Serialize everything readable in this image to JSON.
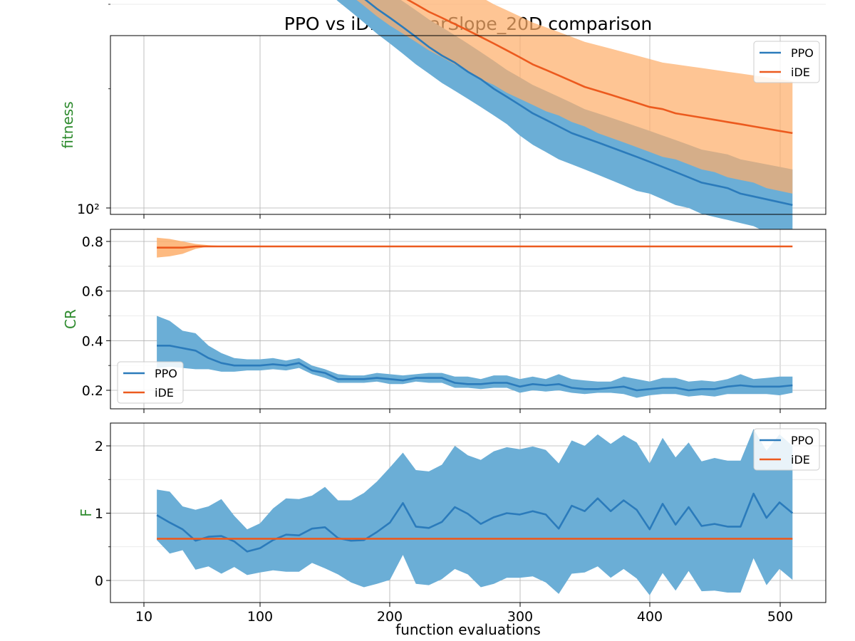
{
  "chart_data": [
    {
      "type": "line",
      "title": "PPO vs iDE: LinearSlope_20D comparison",
      "xlabel": "",
      "ylabel": "fitness",
      "yscale": "log",
      "grid": true,
      "legend_placement": "upper right",
      "xticks": [
        "10",
        "100",
        "200",
        "300",
        "400",
        "500"
      ],
      "ytick_labels": [
        "10²"
      ],
      "colors": {
        "PPO": "#2b7bbb",
        "iDE": "#ec5a1e",
        "PPO_band": "#6baed6",
        "iDE_band": "#fdae6b",
        "ylabel": "#2e8b2e"
      },
      "x": [
        10,
        20,
        30,
        40,
        50,
        60,
        70,
        80,
        90,
        100,
        110,
        120,
        130,
        140,
        150,
        160,
        170,
        180,
        190,
        200,
        210,
        220,
        230,
        240,
        250,
        260,
        270,
        280,
        290,
        300,
        310,
        320,
        330,
        340,
        350,
        360,
        370,
        380,
        390,
        400,
        410,
        420,
        430,
        440,
        450,
        460,
        470,
        480,
        490,
        500,
        510
      ],
      "series": [
        {
          "name": "PPO",
          "values": [
            530,
            495,
            465,
            430,
            405,
            380,
            350,
            330,
            305,
            285,
            268,
            255,
            245,
            236,
            228,
            220,
            212,
            204,
            197,
            191,
            185,
            179,
            173,
            168,
            164,
            159,
            155,
            150,
            146,
            142,
            138,
            135,
            132,
            129,
            127,
            125,
            123,
            121,
            119,
            117,
            115,
            113,
            111,
            109,
            108,
            107,
            105,
            104,
            103,
            102,
            101
          ],
          "lower": [
            480,
            455,
            430,
            405,
            382,
            358,
            330,
            308,
            285,
            265,
            248,
            236,
            227,
            219,
            211,
            202,
            195,
            188,
            181,
            175,
            169,
            163,
            158,
            153,
            149,
            145,
            141,
            137,
            133,
            128,
            124,
            121,
            118,
            116,
            114,
            112,
            110,
            108,
            106,
            105,
            103,
            101,
            100,
            98,
            97,
            96,
            95,
            94,
            92,
            90,
            89
          ],
          "upper": [
            590,
            545,
            505,
            470,
            445,
            415,
            385,
            355,
            330,
            308,
            290,
            276,
            266,
            256,
            247,
            238,
            230,
            222,
            215,
            208,
            202,
            196,
            190,
            185,
            180,
            175,
            170,
            165,
            160,
            156,
            152,
            149,
            146,
            143,
            140,
            138,
            136,
            134,
            132,
            130,
            128,
            126,
            124,
            122,
            121,
            120,
            118,
            117,
            116,
            115,
            114
          ]
        },
        {
          "name": "iDE",
          "values": [
            520,
            470,
            420,
            395,
            370,
            348,
            330,
            313,
            302,
            290,
            280,
            268,
            258,
            250,
            242,
            235,
            228,
            221,
            215,
            210,
            205,
            200,
            195,
            191,
            187,
            183,
            179,
            175,
            171,
            167,
            163,
            160,
            157,
            154,
            151,
            149,
            147,
            145,
            143,
            141,
            140,
            138,
            137,
            136,
            135,
            134,
            133,
            132,
            131,
            130,
            129
          ],
          "lower": [
            455,
            410,
            370,
            345,
            325,
            306,
            290,
            280,
            275,
            268,
            260,
            250,
            240,
            231,
            222,
            214,
            206,
            199,
            192,
            186,
            181,
            176,
            171,
            167,
            163,
            159,
            155,
            152,
            148,
            145,
            142,
            139,
            137,
            134,
            132,
            129,
            127,
            125,
            123,
            121,
            119,
            118,
            116,
            114,
            113,
            111,
            110,
            109,
            107,
            106,
            105
          ],
          "upper": [
            600,
            545,
            490,
            450,
            420,
            395,
            375,
            355,
            340,
            325,
            315,
            305,
            296,
            288,
            280,
            272,
            264,
            257,
            250,
            243,
            237,
            231,
            225,
            220,
            215,
            210,
            205,
            200,
            196,
            192,
            188,
            185,
            182,
            179,
            176,
            174,
            172,
            170,
            168,
            166,
            164,
            163,
            162,
            161,
            160,
            159,
            158,
            157,
            156,
            155,
            154
          ]
        }
      ]
    },
    {
      "type": "line",
      "title": "",
      "xlabel": "",
      "ylabel": "CR",
      "ylim": [
        0.13,
        0.85
      ],
      "grid": true,
      "legend_placement": "lower left",
      "xticks": [
        "10",
        "100",
        "200",
        "300",
        "400",
        "500"
      ],
      "yticks": [
        "0.2",
        "0.4",
        "0.6",
        "0.8"
      ],
      "x": [
        20,
        30,
        40,
        50,
        60,
        70,
        80,
        90,
        100,
        110,
        120,
        130,
        140,
        150,
        160,
        170,
        180,
        190,
        200,
        210,
        220,
        230,
        240,
        250,
        260,
        270,
        280,
        290,
        300,
        310,
        320,
        330,
        340,
        350,
        360,
        370,
        380,
        390,
        400,
        410,
        420,
        430,
        440,
        450,
        460,
        470,
        480,
        490,
        500,
        510
      ],
      "series": [
        {
          "name": "PPO",
          "values": [
            0.38,
            0.38,
            0.37,
            0.36,
            0.33,
            0.31,
            0.3,
            0.3,
            0.3,
            0.305,
            0.3,
            0.31,
            0.28,
            0.27,
            0.245,
            0.245,
            0.245,
            0.25,
            0.245,
            0.24,
            0.25,
            0.25,
            0.25,
            0.23,
            0.225,
            0.225,
            0.23,
            0.23,
            0.215,
            0.225,
            0.22,
            0.225,
            0.21,
            0.205,
            0.205,
            0.21,
            0.215,
            0.2,
            0.205,
            0.21,
            0.21,
            0.2,
            0.205,
            0.205,
            0.215,
            0.22,
            0.215,
            0.215,
            0.215,
            0.22
          ],
          "lower": [
            0.29,
            0.295,
            0.29,
            0.285,
            0.285,
            0.275,
            0.275,
            0.28,
            0.28,
            0.285,
            0.28,
            0.29,
            0.265,
            0.25,
            0.23,
            0.23,
            0.23,
            0.235,
            0.225,
            0.225,
            0.235,
            0.23,
            0.23,
            0.21,
            0.21,
            0.205,
            0.21,
            0.21,
            0.19,
            0.2,
            0.195,
            0.2,
            0.19,
            0.185,
            0.19,
            0.19,
            0.185,
            0.17,
            0.18,
            0.185,
            0.185,
            0.175,
            0.18,
            0.175,
            0.185,
            0.185,
            0.185,
            0.185,
            0.18,
            0.19
          ],
          "upper": [
            0.5,
            0.48,
            0.44,
            0.43,
            0.38,
            0.35,
            0.33,
            0.325,
            0.325,
            0.33,
            0.32,
            0.33,
            0.3,
            0.285,
            0.265,
            0.26,
            0.26,
            0.27,
            0.265,
            0.26,
            0.265,
            0.27,
            0.27,
            0.255,
            0.255,
            0.245,
            0.26,
            0.26,
            0.245,
            0.255,
            0.245,
            0.265,
            0.245,
            0.24,
            0.235,
            0.235,
            0.255,
            0.245,
            0.235,
            0.25,
            0.25,
            0.235,
            0.24,
            0.235,
            0.245,
            0.265,
            0.245,
            0.25,
            0.255,
            0.255
          ]
        },
        {
          "name": "iDE",
          "values": [
            0.775,
            0.775,
            0.775,
            0.78,
            0.78,
            0.78,
            0.78,
            0.78,
            0.78,
            0.78,
            0.78,
            0.78,
            0.78,
            0.78,
            0.78,
            0.78,
            0.78,
            0.78,
            0.78,
            0.78,
            0.78,
            0.78,
            0.78,
            0.78,
            0.78,
            0.78,
            0.78,
            0.78,
            0.78,
            0.78,
            0.78,
            0.78,
            0.78,
            0.78,
            0.78,
            0.78,
            0.78,
            0.78,
            0.78,
            0.78,
            0.78,
            0.78,
            0.78,
            0.78,
            0.78,
            0.78,
            0.78,
            0.78,
            0.78,
            0.78
          ],
          "lower": [
            0.735,
            0.74,
            0.75,
            0.77,
            0.78,
            0.778,
            0.779,
            0.778,
            0.78,
            0.78,
            0.78,
            0.78,
            0.78,
            0.78,
            0.78,
            0.78,
            0.78,
            0.78,
            0.78,
            0.78,
            0.78,
            0.78,
            0.78,
            0.78,
            0.78,
            0.78,
            0.78,
            0.78,
            0.78,
            0.78,
            0.78,
            0.78,
            0.78,
            0.78,
            0.78,
            0.78,
            0.78,
            0.78,
            0.78,
            0.78,
            0.78,
            0.78,
            0.78,
            0.78,
            0.78,
            0.78,
            0.78,
            0.78,
            0.78,
            0.78
          ],
          "upper": [
            0.815,
            0.81,
            0.8,
            0.79,
            0.785,
            0.782,
            0.781,
            0.78,
            0.78,
            0.78,
            0.78,
            0.78,
            0.78,
            0.78,
            0.78,
            0.78,
            0.78,
            0.78,
            0.78,
            0.78,
            0.78,
            0.78,
            0.78,
            0.78,
            0.78,
            0.78,
            0.78,
            0.78,
            0.78,
            0.78,
            0.78,
            0.78,
            0.78,
            0.78,
            0.78,
            0.78,
            0.78,
            0.78,
            0.78,
            0.78,
            0.78,
            0.78,
            0.78,
            0.78,
            0.78,
            0.78,
            0.78,
            0.78,
            0.78,
            0.78
          ]
        }
      ]
    },
    {
      "type": "line",
      "title": "",
      "xlabel": "function evaluations",
      "ylabel": "F",
      "ylim": [
        -0.33,
        2.35
      ],
      "grid": true,
      "legend_placement": "upper right",
      "xticks": [
        "10",
        "100",
        "200",
        "300",
        "400",
        "500"
      ],
      "yticks": [
        "0",
        "1",
        "2"
      ],
      "x": [
        20,
        30,
        40,
        50,
        60,
        70,
        80,
        90,
        100,
        110,
        120,
        130,
        140,
        150,
        160,
        170,
        180,
        190,
        200,
        210,
        220,
        230,
        240,
        250,
        260,
        270,
        280,
        290,
        300,
        310,
        320,
        330,
        340,
        350,
        360,
        370,
        380,
        390,
        400,
        410,
        420,
        430,
        440,
        450,
        460,
        470,
        480,
        490,
        500,
        510
      ],
      "series": [
        {
          "name": "PPO",
          "values": [
            0.97,
            0.86,
            0.76,
            0.59,
            0.65,
            0.66,
            0.58,
            0.43,
            0.48,
            0.6,
            0.68,
            0.67,
            0.77,
            0.79,
            0.63,
            0.59,
            0.6,
            0.72,
            0.86,
            1.15,
            0.8,
            0.78,
            0.87,
            1.09,
            0.99,
            0.84,
            0.94,
            1.0,
            0.98,
            1.03,
            0.98,
            0.77,
            1.11,
            1.03,
            1.22,
            1.03,
            1.19,
            1.05,
            0.76,
            1.14,
            0.83,
            1.09,
            0.81,
            0.84,
            0.8,
            0.8,
            1.29,
            0.93,
            1.16,
            1.0
          ],
          "lower": [
            0.6,
            0.4,
            0.45,
            0.16,
            0.21,
            0.1,
            0.2,
            0.08,
            0.12,
            0.15,
            0.13,
            0.13,
            0.26,
            0.18,
            0.09,
            -0.03,
            -0.1,
            -0.05,
            0.01,
            0.38,
            -0.05,
            -0.07,
            0.02,
            0.17,
            0.09,
            -0.1,
            -0.05,
            0.04,
            0.04,
            0.06,
            -0.03,
            -0.2,
            0.1,
            0.12,
            0.21,
            0.04,
            0.17,
            0.03,
            -0.22,
            0.11,
            -0.15,
            0.14,
            -0.16,
            -0.15,
            -0.18,
            -0.18,
            0.33,
            -0.07,
            0.17,
            0.01
          ],
          "upper": [
            1.35,
            1.32,
            1.1,
            1.05,
            1.1,
            1.21,
            0.96,
            0.76,
            0.85,
            1.07,
            1.22,
            1.21,
            1.26,
            1.39,
            1.19,
            1.19,
            1.3,
            1.47,
            1.68,
            1.9,
            1.64,
            1.62,
            1.72,
            2.0,
            1.86,
            1.79,
            1.92,
            1.98,
            1.95,
            1.99,
            1.94,
            1.74,
            2.08,
            2.0,
            2.17,
            2.03,
            2.16,
            2.05,
            1.74,
            2.12,
            1.83,
            2.05,
            1.77,
            1.82,
            1.78,
            1.78,
            2.25,
            1.93,
            2.17,
            2.0
          ]
        },
        {
          "name": "iDE",
          "values": [
            0.62,
            0.62,
            0.62,
            0.62,
            0.62,
            0.62,
            0.62,
            0.62,
            0.62,
            0.62,
            0.62,
            0.62,
            0.62,
            0.62,
            0.62,
            0.62,
            0.62,
            0.62,
            0.62,
            0.62,
            0.62,
            0.62,
            0.62,
            0.62,
            0.62,
            0.62,
            0.62,
            0.62,
            0.62,
            0.62,
            0.62,
            0.62,
            0.62,
            0.62,
            0.62,
            0.62,
            0.62,
            0.62,
            0.62,
            0.62,
            0.62,
            0.62,
            0.62,
            0.62,
            0.62,
            0.62,
            0.62,
            0.62,
            0.62,
            0.62
          ]
        }
      ]
    }
  ]
}
